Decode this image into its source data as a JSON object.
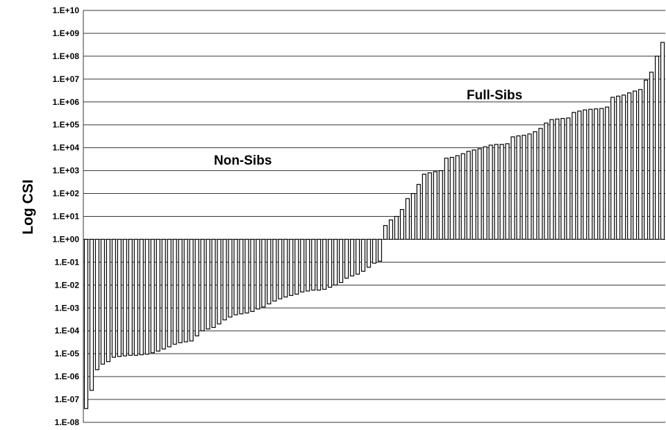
{
  "chart_data": {
    "type": "bar",
    "ylabel": "Log CSI",
    "xlabel": "",
    "yscale": "log",
    "baseline": 1,
    "ylim": [
      1e-08,
      10000000000.0
    ],
    "grid": true,
    "yticks": [
      "1.E-08",
      "1.E-07",
      "1.E-06",
      "1.E-05",
      "1.E-04",
      "1.E-03",
      "1.E-02",
      "1.E-01",
      "1.E+00",
      "1.E+01",
      "1.E+02",
      "1.E+03",
      "1.E+04",
      "1.E+05",
      "1.E+06",
      "1.E+07",
      "1.E+08",
      "1.E+09",
      "1.E+10"
    ],
    "annotations": [
      {
        "text": "Non-Sibs"
      },
      {
        "text": "Full-Sibs"
      }
    ],
    "values": [
      4e-08,
      2.5e-07,
      2e-06,
      3.5e-06,
      4.5e-06,
      7e-06,
      7.5e-06,
      8e-06,
      8.5e-06,
      8.5e-06,
      9e-06,
      9.5e-06,
      1.1e-05,
      1.3e-05,
      1.6e-05,
      2e-05,
      2.6e-05,
      3e-05,
      3.3e-05,
      3.6e-05,
      6e-05,
      0.0001,
      0.00012,
      0.00014,
      0.0002,
      0.0003,
      0.0004,
      0.0005,
      0.00055,
      0.0006,
      0.0007,
      0.0009,
      0.0011,
      0.0015,
      0.002,
      0.0025,
      0.003,
      0.0035,
      0.004,
      0.005,
      0.0055,
      0.006,
      0.006,
      0.0065,
      0.008,
      0.01,
      0.013,
      0.02,
      0.025,
      0.03,
      0.04,
      0.06,
      0.09,
      0.11,
      4,
      7,
      10,
      20,
      60,
      100,
      250,
      700,
      800,
      900,
      1000,
      3500,
      3800,
      4500,
      5500,
      7000,
      8000,
      9000,
      11000,
      13000,
      14000,
      14000,
      15000,
      30000,
      33000,
      35000,
      40000,
      50000,
      70000,
      120000,
      170000,
      180000,
      190000,
      200000,
      350000,
      400000,
      450000,
      480000,
      500000,
      520000,
      600000,
      1600000,
      1800000,
      2000000,
      2500000,
      3000000,
      3500000,
      9000000,
      20000000,
      100000000,
      400000000
    ]
  }
}
